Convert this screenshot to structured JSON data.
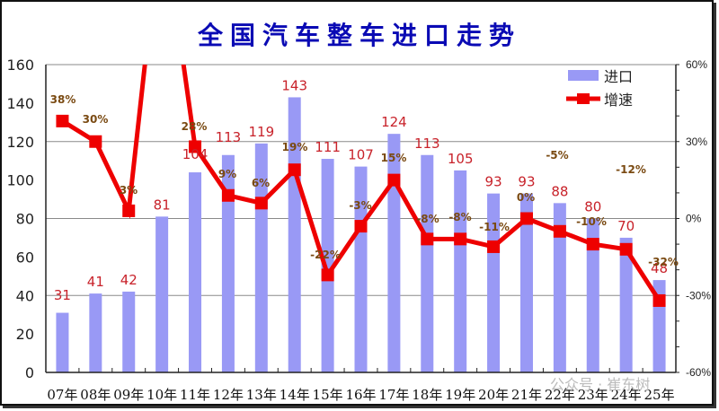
{
  "title": "全国汽车整车进口走势",
  "legend": {
    "bar_label": "进口",
    "line_label": "增速"
  },
  "watermark": "公众号 · 崔东树",
  "colors": {
    "bar": "#9999f5",
    "line": "#ee0000",
    "title": "#0a0ab4",
    "value_label": "#c8222a",
    "pct_label": "#7a4a12"
  },
  "chart_data": {
    "type": "bar+line",
    "title": "全国汽车整车进口走势",
    "categories": [
      "07年",
      "08年",
      "09年",
      "10年",
      "11年",
      "12年",
      "13年",
      "14年",
      "15年",
      "16年",
      "17年",
      "18年",
      "19年",
      "20年",
      "21年",
      "22年",
      "23年",
      "24年",
      "25年"
    ],
    "series": [
      {
        "name": "进口",
        "type": "bar",
        "axis": "left",
        "values": [
          31,
          41,
          42,
          81,
          104,
          113,
          119,
          143,
          111,
          107,
          124,
          113,
          105,
          93,
          93,
          88,
          80,
          70,
          48
        ]
      },
      {
        "name": "增速",
        "type": "line",
        "axis": "right",
        "unit": "%",
        "values": [
          38,
          30,
          3,
          null,
          28,
          9,
          6,
          19,
          -22,
          -3,
          15,
          -8,
          -8,
          -11,
          0,
          -5,
          -10,
          -12,
          -32
        ],
        "note": "10年 value exceeds right axis max (off-chart, unlabeled)"
      }
    ],
    "value_labels": [
      "31",
      "41",
      "42",
      "81",
      "104",
      "113",
      "119",
      "143",
      "111",
      "107",
      "124",
      "113",
      "105",
      "93",
      "93",
      "88",
      "80",
      "70",
      "48"
    ],
    "pct_labels": [
      "38%",
      "30%",
      "3%",
      "",
      "28%",
      "9%",
      "6%",
      "19%",
      "-22%",
      "-3%",
      "15%",
      "-8%",
      "-8%",
      "-11%",
      "0%",
      "-5%",
      "-10%",
      "-12%",
      "-32%"
    ],
    "left_axis": {
      "ylim": [
        0,
        160
      ],
      "ticks": [
        "0",
        "20",
        "40",
        "60",
        "80",
        "100",
        "120",
        "140",
        "160"
      ]
    },
    "right_axis": {
      "ylim": [
        -60,
        60
      ],
      "ticks": [
        "-60%",
        "-30%",
        "0%",
        "30%",
        "60%"
      ]
    },
    "grid": true,
    "legend_position": "top-right"
  }
}
